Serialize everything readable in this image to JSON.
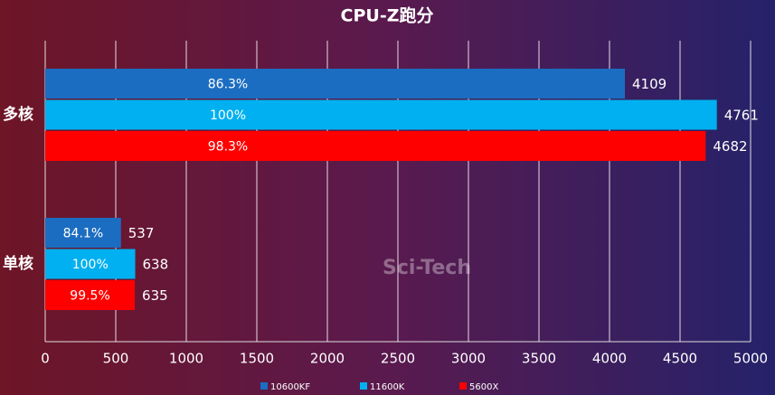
{
  "chart_data": {
    "type": "bar",
    "orientation": "horizontal",
    "title": "CPU-Z跑分",
    "categories": [
      "多核",
      "单核"
    ],
    "series": [
      {
        "name": "10600KF",
        "color": "#1b6dc1",
        "values": [
          4109,
          537
        ],
        "share_labels": [
          "86.3%",
          "84.1%"
        ]
      },
      {
        "name": "11600K",
        "color": "#00b0f0",
        "values": [
          4761,
          638
        ],
        "share_labels": [
          "100%",
          "100%"
        ]
      },
      {
        "name": "5600X",
        "color": "#ff0000",
        "values": [
          4682,
          635
        ],
        "share_labels": [
          "98.3%",
          "99.5%"
        ]
      }
    ],
    "xlim": [
      0,
      5000
    ],
    "xticks": [
      0,
      500,
      1000,
      1500,
      2000,
      2500,
      3000,
      3500,
      4000,
      4500,
      5000
    ],
    "grid": true,
    "legend": "bottom"
  },
  "watermark": "Sci-Tech"
}
